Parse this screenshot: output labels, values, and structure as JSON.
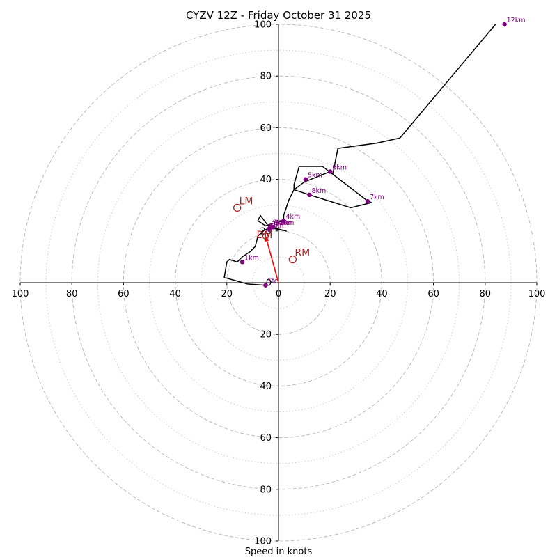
{
  "chart_data": {
    "type": "hodograph",
    "title": "CYZV 12Z - Friday October 31 2025",
    "xlabel": "Speed in knots",
    "xlim": [
      -100,
      100
    ],
    "ylim": [
      -100,
      100
    ],
    "x_tick_labels": [
      "100",
      "80",
      "60",
      "40",
      "20",
      "0",
      "20",
      "40",
      "60",
      "80",
      "100"
    ],
    "y_tick_labels": [
      "100",
      "80",
      "60",
      "40",
      "20",
      "0",
      "20",
      "40",
      "60",
      "80",
      "100"
    ],
    "tick_values": [
      -100,
      -80,
      -60,
      -40,
      -20,
      0,
      20,
      40,
      60,
      80,
      100
    ],
    "ring_major_speeds": [
      20,
      40,
      60,
      80,
      100
    ],
    "ring_minor_speeds": [
      10,
      30,
      50,
      70,
      90
    ],
    "hodograph_trace": [
      [
        -5,
        -1
      ],
      [
        -12,
        -0.5
      ],
      [
        -21,
        2
      ],
      [
        -20,
        8
      ],
      [
        -19,
        9
      ],
      [
        -16,
        8
      ],
      [
        -14,
        10
      ],
      [
        -11,
        12
      ],
      [
        -9,
        14
      ],
      [
        -8,
        18
      ],
      [
        -6,
        20
      ],
      [
        -4,
        21
      ],
      [
        -2,
        21
      ],
      [
        3,
        20
      ],
      [
        -1,
        21
      ],
      [
        -4,
        22
      ],
      [
        -7,
        26
      ],
      [
        -8,
        24
      ],
      [
        -5,
        22
      ],
      [
        -2,
        23
      ],
      [
        2,
        24
      ],
      [
        2,
        26
      ],
      [
        4,
        32
      ],
      [
        6,
        36
      ],
      [
        10,
        39
      ],
      [
        20,
        43
      ],
      [
        21,
        42
      ],
      [
        17,
        45
      ],
      [
        8,
        45
      ],
      [
        6,
        38
      ],
      [
        6,
        36
      ],
      [
        12,
        34
      ],
      [
        28,
        29
      ],
      [
        36,
        31
      ],
      [
        34,
        32
      ],
      [
        21,
        42
      ],
      [
        23,
        52
      ],
      [
        38,
        54
      ],
      [
        47,
        56
      ],
      [
        84,
        100
      ]
    ],
    "height_markers": [
      {
        "label": "Sfc",
        "x": -5,
        "y": -1
      },
      {
        "label": "1km",
        "x": -14,
        "y": 8
      },
      {
        "label": "2km",
        "x": -3.5,
        "y": 20.5
      },
      {
        "label": "3km",
        "x": -3.5,
        "y": 21
      },
      {
        "label": "4km",
        "x": 2,
        "y": 24
      },
      {
        "label": "5km",
        "x": 10.5,
        "y": 40
      },
      {
        "label": "6km",
        "x": 20,
        "y": 43
      },
      {
        "label": "7km",
        "x": 34.5,
        "y": 31.5
      },
      {
        "label": "8km",
        "x": 12,
        "y": 34
      },
      {
        "label": "9km",
        "x": -3,
        "y": 22
      },
      {
        "label": "10km",
        "x": -2.5,
        "y": 21.5
      },
      {
        "label": "11km",
        "x": -2,
        "y": 21.5
      },
      {
        "label": "12km",
        "x": 87.5,
        "y": 100
      }
    ],
    "storm_motions": [
      {
        "label": "LM",
        "x": -16,
        "y": 29
      },
      {
        "label": "RM",
        "x": 5.5,
        "y": 9
      },
      {
        "label": "DM",
        "x": -5,
        "y": 18
      }
    ],
    "mean_wind_vector": {
      "x0": 0,
      "y0": 0,
      "x1": -5,
      "y1": 18
    },
    "colors": {
      "trace": "#000000",
      "marker": "#800080",
      "motion": "#b22222",
      "vector": "#ff0000",
      "ring_major": "#bbbbbb",
      "ring_minor": "#cccccc",
      "axis": "#000000"
    }
  }
}
